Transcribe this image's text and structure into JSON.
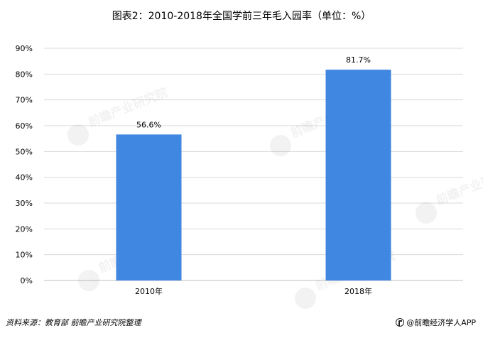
{
  "title": "图表2：2010-2018年全国学前三年毛入园率（单位：%）",
  "watermark_text": "前瞻产业研究院",
  "footer": {
    "source": "资料来源：教育部 前瞻产业研究院整理",
    "brand": "@前瞻经济学人APP"
  },
  "colors": {
    "bar": "#3f87e0",
    "grid": "#d9d9d9",
    "axis": "#bfbfbf"
  },
  "chart_data": {
    "type": "bar",
    "categories": [
      "2010年",
      "2018年"
    ],
    "values": [
      56.6,
      81.7
    ],
    "value_labels": [
      "56.6%",
      "81.7%"
    ],
    "yticks": [
      "0%",
      "10%",
      "20%",
      "30%",
      "40%",
      "50%",
      "60%",
      "70%",
      "80%",
      "90%"
    ],
    "ylim": [
      0,
      90
    ],
    "grid": true,
    "legend": "none"
  }
}
